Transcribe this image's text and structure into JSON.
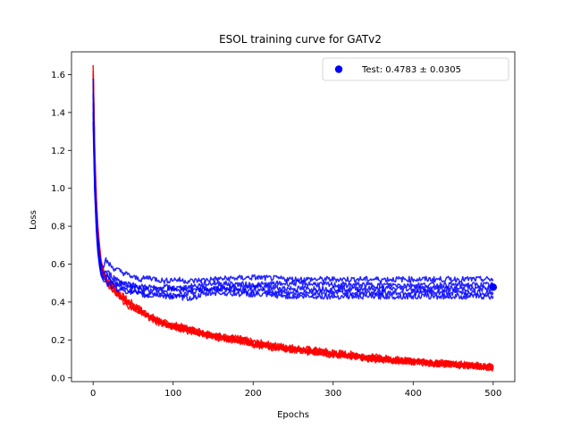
{
  "chart_data": {
    "type": "line",
    "title": "ESOL training curve for GATv2",
    "xlabel": "Epochs",
    "ylabel": "Loss",
    "xlim": [
      -27,
      527
    ],
    "ylim": [
      -0.02,
      1.72
    ],
    "xticks": [
      0,
      100,
      200,
      300,
      400,
      500
    ],
    "yticks": [
      0.0,
      0.2,
      0.4,
      0.6,
      0.8,
      1.0,
      1.2,
      1.4,
      1.6
    ],
    "ytick_labels": [
      "0.0",
      "0.2",
      "0.4",
      "0.6",
      "0.8",
      "1.0",
      "1.2",
      "1.4",
      "1.6"
    ],
    "grid": false,
    "legend": {
      "location": "top-right",
      "entries": [
        {
          "label": "Test: 0.4783 ± 0.0305",
          "color": "#0000ff",
          "marker": "circle"
        }
      ]
    },
    "colors": {
      "train": "#ff0000",
      "test": "#0000ff"
    },
    "series": [
      {
        "kind": "train",
        "color": "#ff0000",
        "x": [
          0,
          2,
          4,
          6,
          8,
          10,
          13,
          16,
          20,
          25,
          30,
          40,
          50,
          60,
          70,
          80,
          90,
          100,
          120,
          140,
          160,
          180,
          200,
          230,
          260,
          300,
          350,
          400,
          450,
          500
        ],
        "y": [
          1.65,
          1.2,
          0.95,
          0.8,
          0.7,
          0.62,
          0.57,
          0.54,
          0.51,
          0.49,
          0.46,
          0.42,
          0.39,
          0.36,
          0.33,
          0.31,
          0.29,
          0.28,
          0.26,
          0.24,
          0.22,
          0.21,
          0.19,
          0.17,
          0.155,
          0.135,
          0.11,
          0.09,
          0.075,
          0.06
        ]
      },
      {
        "kind": "train",
        "color": "#ff0000",
        "x": [
          0,
          2,
          4,
          6,
          8,
          10,
          13,
          16,
          20,
          25,
          30,
          40,
          50,
          60,
          70,
          80,
          90,
          100,
          120,
          140,
          160,
          180,
          200,
          230,
          260,
          300,
          350,
          400,
          450,
          500
        ],
        "y": [
          1.62,
          1.18,
          0.93,
          0.78,
          0.69,
          0.61,
          0.56,
          0.53,
          0.5,
          0.48,
          0.45,
          0.41,
          0.38,
          0.355,
          0.325,
          0.305,
          0.285,
          0.275,
          0.255,
          0.235,
          0.215,
          0.205,
          0.185,
          0.165,
          0.15,
          0.13,
          0.105,
          0.088,
          0.072,
          0.058
        ]
      },
      {
        "kind": "train",
        "color": "#ff0000",
        "x": [
          0,
          2,
          4,
          6,
          8,
          10,
          13,
          16,
          20,
          25,
          30,
          40,
          50,
          60,
          70,
          80,
          90,
          100,
          120,
          140,
          160,
          180,
          200,
          230,
          260,
          300,
          350,
          400,
          450,
          500
        ],
        "y": [
          1.6,
          1.15,
          0.92,
          0.77,
          0.68,
          0.6,
          0.55,
          0.52,
          0.49,
          0.47,
          0.44,
          0.4,
          0.37,
          0.35,
          0.32,
          0.3,
          0.28,
          0.27,
          0.25,
          0.23,
          0.21,
          0.2,
          0.18,
          0.16,
          0.145,
          0.125,
          0.1,
          0.085,
          0.07,
          0.055
        ]
      },
      {
        "kind": "train",
        "color": "#ff0000",
        "x": [
          0,
          2,
          4,
          6,
          8,
          10,
          13,
          16,
          20,
          25,
          30,
          40,
          50,
          60,
          70,
          80,
          90,
          100,
          120,
          140,
          160,
          180,
          200,
          230,
          260,
          300,
          350,
          400,
          450,
          500
        ],
        "y": [
          1.58,
          1.13,
          0.9,
          0.76,
          0.67,
          0.6,
          0.55,
          0.52,
          0.5,
          0.475,
          0.445,
          0.405,
          0.375,
          0.352,
          0.322,
          0.302,
          0.282,
          0.272,
          0.252,
          0.232,
          0.212,
          0.202,
          0.182,
          0.162,
          0.147,
          0.127,
          0.102,
          0.086,
          0.071,
          0.056
        ]
      },
      {
        "kind": "train",
        "color": "#ff0000",
        "x": [
          0,
          2,
          4,
          6,
          8,
          10,
          13,
          16,
          20,
          25,
          30,
          40,
          50,
          60,
          70,
          80,
          90,
          100,
          120,
          140,
          160,
          180,
          200,
          230,
          260,
          300,
          350,
          400,
          450,
          500
        ],
        "y": [
          1.55,
          1.1,
          0.88,
          0.75,
          0.66,
          0.59,
          0.54,
          0.51,
          0.485,
          0.465,
          0.435,
          0.395,
          0.365,
          0.345,
          0.315,
          0.295,
          0.275,
          0.265,
          0.245,
          0.225,
          0.205,
          0.195,
          0.175,
          0.155,
          0.14,
          0.12,
          0.097,
          0.082,
          0.068,
          0.054
        ]
      },
      {
        "kind": "test",
        "color": "#0000ff",
        "x": [
          0,
          2,
          4,
          6,
          8,
          10,
          13,
          16,
          20,
          25,
          30,
          40,
          50,
          60,
          70,
          80,
          90,
          100,
          120,
          150,
          200,
          250,
          300,
          350,
          400,
          450,
          500
        ],
        "y": [
          1.58,
          1.1,
          0.9,
          0.75,
          0.66,
          0.6,
          0.58,
          0.62,
          0.6,
          0.58,
          0.57,
          0.55,
          0.53,
          0.52,
          0.53,
          0.52,
          0.51,
          0.52,
          0.51,
          0.52,
          0.53,
          0.52,
          0.52,
          0.52,
          0.52,
          0.52,
          0.52
        ]
      },
      {
        "kind": "test",
        "color": "#0000ff",
        "x": [
          0,
          2,
          4,
          6,
          8,
          10,
          13,
          16,
          20,
          25,
          30,
          40,
          50,
          60,
          70,
          80,
          90,
          100,
          120,
          150,
          200,
          250,
          300,
          350,
          400,
          450,
          500
        ],
        "y": [
          1.5,
          1.05,
          0.85,
          0.72,
          0.64,
          0.58,
          0.55,
          0.56,
          0.55,
          0.53,
          0.52,
          0.5,
          0.49,
          0.48,
          0.48,
          0.47,
          0.48,
          0.47,
          0.48,
          0.5,
          0.49,
          0.5,
          0.49,
          0.49,
          0.49,
          0.49,
          0.49
        ]
      },
      {
        "kind": "test",
        "color": "#0000ff",
        "x": [
          0,
          2,
          4,
          6,
          8,
          10,
          13,
          16,
          20,
          25,
          30,
          40,
          50,
          60,
          70,
          80,
          90,
          100,
          120,
          150,
          200,
          250,
          300,
          350,
          400,
          450,
          500
        ],
        "y": [
          1.45,
          1.02,
          0.83,
          0.7,
          0.62,
          0.56,
          0.53,
          0.54,
          0.53,
          0.51,
          0.5,
          0.49,
          0.48,
          0.47,
          0.46,
          0.47,
          0.46,
          0.47,
          0.46,
          0.47,
          0.48,
          0.47,
          0.47,
          0.47,
          0.47,
          0.47,
          0.47
        ]
      },
      {
        "kind": "test",
        "color": "#0000ff",
        "x": [
          0,
          2,
          4,
          6,
          8,
          10,
          13,
          16,
          20,
          25,
          30,
          40,
          50,
          60,
          70,
          80,
          90,
          100,
          120,
          150,
          200,
          250,
          300,
          350,
          400,
          450,
          500
        ],
        "y": [
          1.4,
          1.0,
          0.8,
          0.68,
          0.6,
          0.55,
          0.52,
          0.53,
          0.52,
          0.5,
          0.49,
          0.47,
          0.46,
          0.45,
          0.44,
          0.45,
          0.44,
          0.43,
          0.45,
          0.47,
          0.46,
          0.45,
          0.45,
          0.45,
          0.45,
          0.45,
          0.45
        ]
      },
      {
        "kind": "test",
        "color": "#0000ff",
        "x": [
          0,
          2,
          4,
          6,
          8,
          10,
          13,
          16,
          20,
          25,
          30,
          40,
          50,
          60,
          70,
          80,
          90,
          100,
          120,
          150,
          200,
          250,
          300,
          350,
          400,
          450,
          500
        ],
        "y": [
          1.35,
          0.98,
          0.78,
          0.66,
          0.59,
          0.54,
          0.51,
          0.5,
          0.49,
          0.48,
          0.47,
          0.46,
          0.45,
          0.44,
          0.43,
          0.44,
          0.43,
          0.43,
          0.42,
          0.45,
          0.44,
          0.43,
          0.43,
          0.43,
          0.43,
          0.43,
          0.43
        ]
      }
    ],
    "final_point": {
      "x": 500,
      "y": 0.4783
    }
  }
}
